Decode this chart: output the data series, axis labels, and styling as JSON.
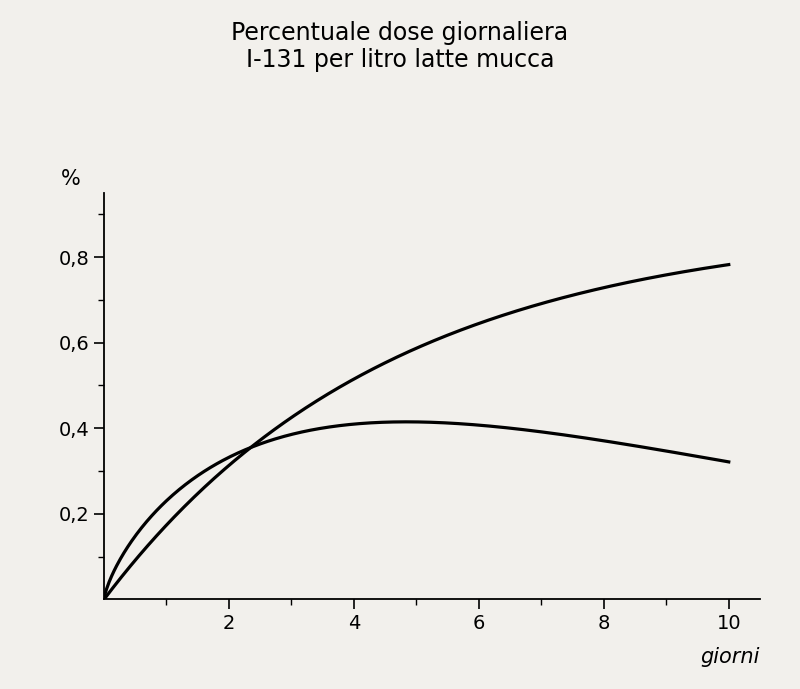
{
  "title_line1": "Percentuale dose giornaliera",
  "title_line2": "I-131 per litro latte mucca",
  "xlabel": "giorni",
  "ylabel": "%",
  "background_color": "#f2f0ec",
  "yticks_major": [
    0.2,
    0.4,
    0.6,
    0.8
  ],
  "yticks_minor": [
    0.1,
    0.3,
    0.5,
    0.7,
    0.9
  ],
  "xticks_major": [
    2,
    4,
    6,
    8,
    10
  ],
  "xticks_minor": [
    1,
    3,
    5,
    7,
    9
  ],
  "ylim": [
    0,
    0.95
  ],
  "xlim": [
    0,
    10.5
  ],
  "curve1_color": "#000000",
  "curve2_color": "#000000",
  "linewidth": 2.3,
  "curve1_A": 0.88,
  "curve1_b": 0.22,
  "curve2_alpha": 0.75,
  "curve2_beta": 0.155,
  "curve2_peak_target": 0.415
}
